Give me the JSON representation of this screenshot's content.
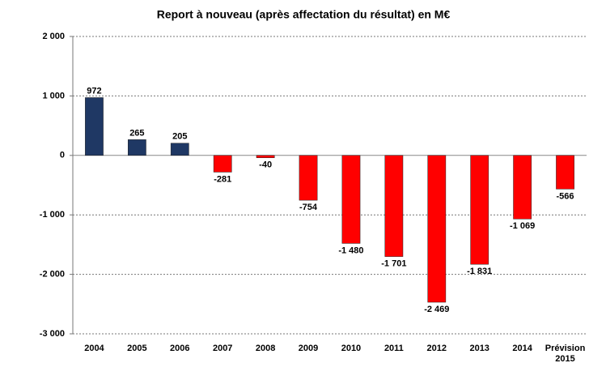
{
  "chart_data": {
    "type": "bar",
    "title": "Report à nouveau (après affectation du résultat) en M€",
    "categories": [
      "2004",
      "2005",
      "2006",
      "2007",
      "2008",
      "2009",
      "2010",
      "2011",
      "2012",
      "2013",
      "2014",
      "Prévision 2015"
    ],
    "values": [
      972,
      265,
      205,
      -281,
      -40,
      -754,
      -1480,
      -1701,
      -2469,
      -1831,
      -1069,
      -566
    ],
    "value_labels": [
      "972",
      "265",
      "205",
      "-281",
      "-40",
      "-754",
      "-1 480",
      "-1 701",
      "-2 469",
      "-1 831",
      "-1 069",
      "-566"
    ],
    "colors": [
      "#1f3864",
      "#1f3864",
      "#1f3864",
      "#ff0000",
      "#ff0000",
      "#ff0000",
      "#ff0000",
      "#ff0000",
      "#ff0000",
      "#ff0000",
      "#ff0000",
      "#ff0000"
    ],
    "ylim": [
      -3000,
      2000
    ],
    "yticks": [
      {
        "value": -3000,
        "label": "-3 000"
      },
      {
        "value": -2000,
        "label": "-2 000"
      },
      {
        "value": -1000,
        "label": "-1 000"
      },
      0,
      {
        "value": 1000,
        "label": "1 000"
      },
      {
        "value": 2000,
        "label": "2 000"
      }
    ],
    "grid": true
  }
}
